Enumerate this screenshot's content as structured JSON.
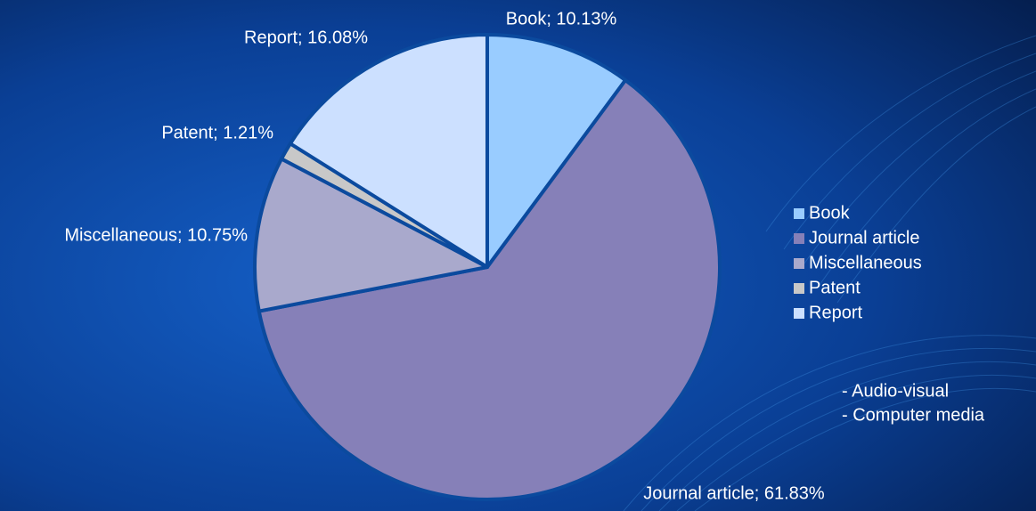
{
  "chart_data": {
    "type": "pie",
    "categories": [
      "Book",
      "Journal article",
      "Miscellaneous",
      "Patent",
      "Report"
    ],
    "values": [
      10.13,
      61.83,
      10.75,
      1.21,
      16.08
    ],
    "value_labels": [
      "Book; 10.13%",
      "Journal article; 61.83%",
      "Miscellaneous; 10.75%",
      "Patent; 1.21%",
      "Report; 16.08%"
    ],
    "colors": [
      "#99ccff",
      "#8680b8",
      "#a9a9cc",
      "#c8c8c8",
      "#cce0ff"
    ],
    "legend": "right",
    "annotations": [
      "- Audio-visual",
      "- Computer media"
    ]
  }
}
